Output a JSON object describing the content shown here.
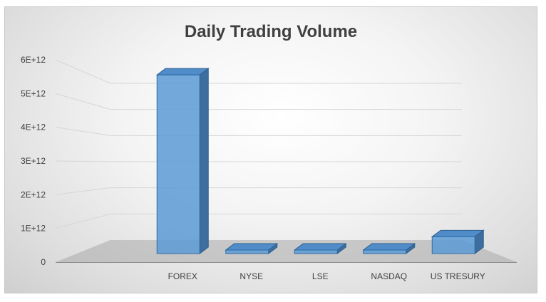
{
  "chart_data": {
    "type": "bar",
    "title": "Daily Trading Volume",
    "xlabel": "",
    "ylabel": "",
    "categories": [
      "FOREX",
      "NYSE",
      "LSE",
      "NASDAQ",
      "US TRESURY"
    ],
    "values": [
      5300000000000,
      22400000000,
      5000000000,
      77000000000,
      500000000000
    ],
    "yticks": [
      "0",
      "1E+12",
      "2E+12",
      "3E+12",
      "4E+12",
      "5E+12",
      "6E+12"
    ],
    "ylim": [
      0,
      6000000000000
    ],
    "grid": true,
    "legend": "none",
    "bar_color": "#5B9BD5",
    "style": "3d-column"
  }
}
